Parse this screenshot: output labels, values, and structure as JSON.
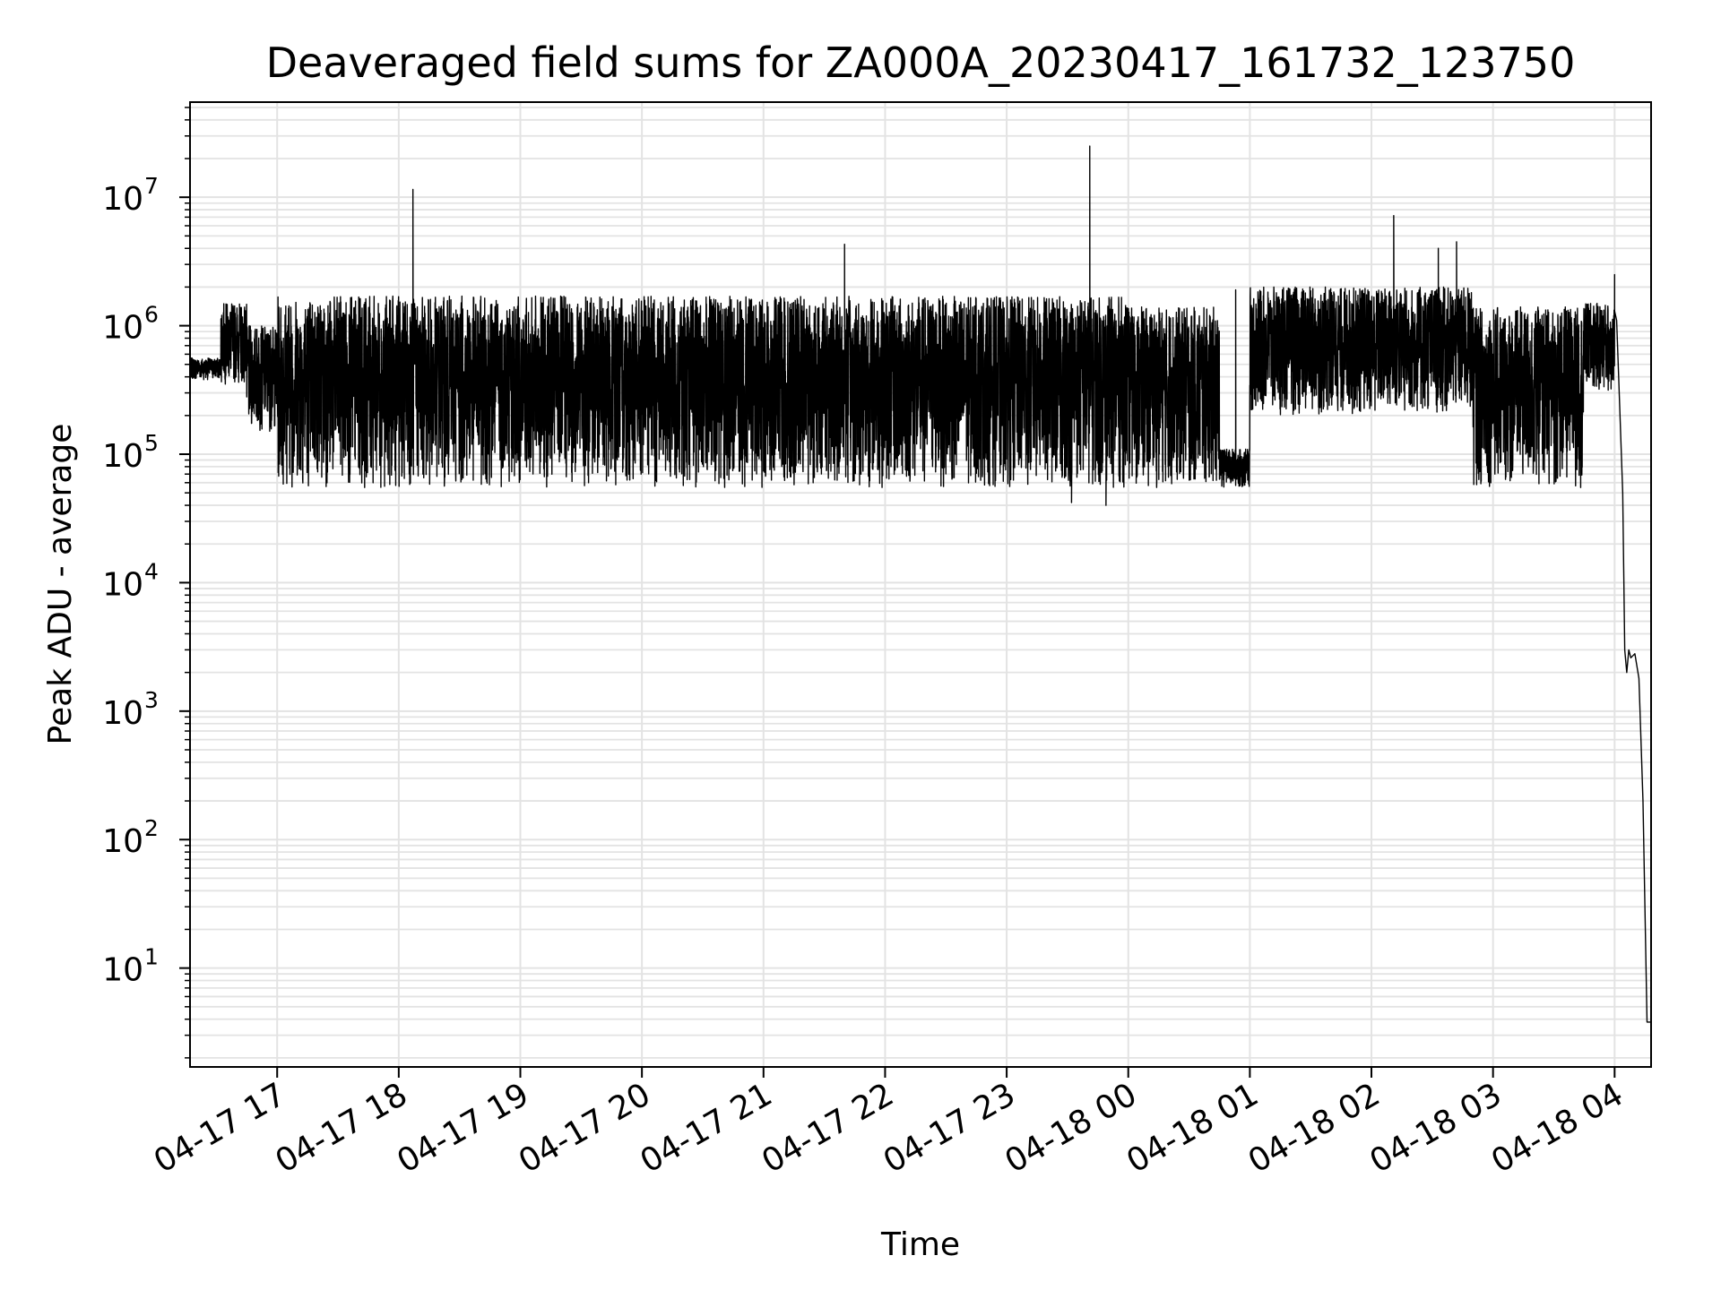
{
  "chart_data": {
    "type": "line",
    "title": "Deaveraged field sums for ZA000A_20230417_161732_123750",
    "xlabel": "Time",
    "ylabel": "Peak ADU - average",
    "yscale": "log",
    "ylim": [
      1.7,
      55000000
    ],
    "xlim": [
      "2023-04-17 16:17",
      "2023-04-18 04:18"
    ],
    "grid": true,
    "line_color": "#000000",
    "x_ticks": [
      {
        "t": "2023-04-17 17:00",
        "label": "04-17 17"
      },
      {
        "t": "2023-04-17 18:00",
        "label": "04-17 18"
      },
      {
        "t": "2023-04-17 19:00",
        "label": "04-17 19"
      },
      {
        "t": "2023-04-17 20:00",
        "label": "04-17 20"
      },
      {
        "t": "2023-04-17 21:00",
        "label": "04-17 21"
      },
      {
        "t": "2023-04-17 22:00",
        "label": "04-17 22"
      },
      {
        "t": "2023-04-17 23:00",
        "label": "04-17 23"
      },
      {
        "t": "2023-04-18 00:00",
        "label": "04-18 00"
      },
      {
        "t": "2023-04-18 01:00",
        "label": "04-18 01"
      },
      {
        "t": "2023-04-18 02:00",
        "label": "04-18 02"
      },
      {
        "t": "2023-04-18 03:00",
        "label": "04-18 03"
      },
      {
        "t": "2023-04-18 04:00",
        "label": "04-18 04"
      }
    ],
    "y_ticks": [
      {
        "value": 10,
        "base": "10",
        "exp": "1"
      },
      {
        "value": 100,
        "base": "10",
        "exp": "2"
      },
      {
        "value": 1000,
        "base": "10",
        "exp": "3"
      },
      {
        "value": 10000,
        "base": "10",
        "exp": "4"
      },
      {
        "value": 100000,
        "base": "10",
        "exp": "5"
      },
      {
        "value": 1000000,
        "base": "10",
        "exp": "6"
      },
      {
        "value": 10000000,
        "base": "10",
        "exp": "7"
      }
    ],
    "series": [
      {
        "segments": [
          {
            "from": "2023-04-17 16:17",
            "to": "2023-04-17 16:32",
            "low": 380000,
            "high": 560000
          },
          {
            "from": "2023-04-17 16:32",
            "to": "2023-04-17 16:45",
            "low": 350000,
            "high": 1500000
          },
          {
            "from": "2023-04-17 16:45",
            "to": "2023-04-17 17:00",
            "low": 150000,
            "high": 1000000
          },
          {
            "from": "2023-04-17 17:00",
            "to": "2023-04-18 00:00",
            "low": 55000,
            "high": 1700000
          },
          {
            "from": "2023-04-18 00:00",
            "to": "2023-04-18 00:45",
            "low": 55000,
            "high": 1400000
          },
          {
            "from": "2023-04-18 00:45",
            "to": "2023-04-18 01:00",
            "low": 55000,
            "high": 110000
          },
          {
            "from": "2023-04-18 01:00",
            "to": "2023-04-18 02:50",
            "low": 200000,
            "high": 2000000
          },
          {
            "from": "2023-04-18 02:50",
            "to": "2023-04-18 03:45",
            "low": 55000,
            "high": 1400000
          },
          {
            "from": "2023-04-18 03:45",
            "to": "2023-04-18 04:00",
            "low": 300000,
            "high": 1500000
          }
        ],
        "spikes": [
          {
            "t": "2023-04-17 18:07",
            "value": 11500000
          },
          {
            "t": "2023-04-17 21:40",
            "value": 4300000
          },
          {
            "t": "2023-04-17 23:41",
            "value": 25000000
          },
          {
            "t": "2023-04-18 00:53",
            "value": 1900000
          },
          {
            "t": "2023-04-18 02:11",
            "value": 7200000
          },
          {
            "t": "2023-04-18 02:33",
            "value": 4000000
          },
          {
            "t": "2023-04-18 02:42",
            "value": 4500000
          },
          {
            "t": "2023-04-18 04:00",
            "value": 2500000
          }
        ],
        "dips": [
          {
            "t": "2023-04-17 23:32",
            "value": 42000
          },
          {
            "t": "2023-04-17 23:49",
            "value": 40000
          }
        ],
        "tail": [
          {
            "t": "2023-04-18 04:00",
            "value": 1300000
          },
          {
            "t": "2023-04-18 04:01",
            "value": 1100000
          },
          {
            "t": "2023-04-18 04:02",
            "value": 400000
          },
          {
            "t": "2023-04-18 04:04",
            "value": 50000
          },
          {
            "t": "2023-04-18 04:05",
            "value": 3000
          },
          {
            "t": "2023-04-18 04:06",
            "value": 2000
          },
          {
            "t": "2023-04-18 04:07",
            "value": 3000
          },
          {
            "t": "2023-04-18 04:08",
            "value": 2600
          },
          {
            "t": "2023-04-18 04:10",
            "value": 2800
          },
          {
            "t": "2023-04-18 04:12",
            "value": 1800
          },
          {
            "t": "2023-04-18 04:14",
            "value": 200
          },
          {
            "t": "2023-04-18 04:16",
            "value": 3.8
          },
          {
            "t": "2023-04-18 04:18",
            "value": 3.8
          }
        ]
      }
    ]
  }
}
